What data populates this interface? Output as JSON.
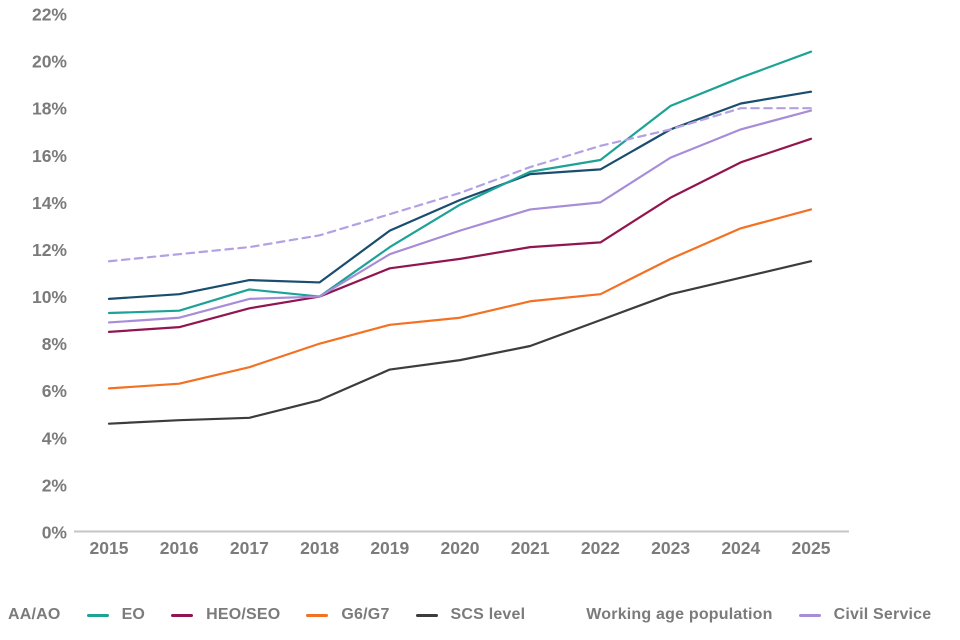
{
  "chart_data": {
    "type": "line",
    "title": "",
    "xlabel": "",
    "ylabel": "",
    "x": [
      "2015",
      "2016",
      "2017",
      "2018",
      "2019",
      "2020",
      "2021",
      "2022",
      "2023",
      "2024",
      "2025"
    ],
    "ylim": [
      0,
      22
    ],
    "ytick_labels": [
      "0%",
      "2%",
      "4%",
      "6%",
      "8%",
      "10%",
      "12%",
      "14%",
      "16%",
      "18%",
      "20%",
      "22%"
    ],
    "grid": false,
    "legend_position": "bottom",
    "series": [
      {
        "name": "AA/AO",
        "color": "#1A4D6E",
        "style": "solid",
        "values": [
          9.9,
          10.1,
          10.7,
          10.6,
          12.8,
          14.1,
          15.2,
          15.4,
          17.1,
          18.2,
          18.7
        ]
      },
      {
        "name": "EO",
        "color": "#1DA296",
        "style": "solid",
        "values": [
          9.3,
          9.4,
          10.3,
          10.0,
          12.1,
          13.9,
          15.3,
          15.8,
          18.1,
          19.3,
          20.4
        ]
      },
      {
        "name": "HEO/SEO",
        "color": "#91164F",
        "style": "solid",
        "values": [
          8.5,
          8.7,
          9.5,
          10.0,
          11.2,
          11.6,
          12.1,
          12.3,
          14.2,
          15.7,
          16.7
        ]
      },
      {
        "name": "G6/G7",
        "color": "#F37123",
        "style": "solid",
        "values": [
          6.1,
          6.3,
          7.0,
          8.0,
          8.8,
          9.1,
          9.8,
          10.1,
          11.6,
          12.9,
          13.7
        ]
      },
      {
        "name": "SCS level",
        "color": "#3C3C3C",
        "style": "solid",
        "values": [
          4.6,
          4.75,
          4.85,
          5.6,
          6.9,
          7.3,
          7.9,
          9.0,
          10.1,
          10.8,
          11.5
        ]
      },
      {
        "name": "Working age population",
        "color": "#B3A1E3",
        "style": "dashed",
        "values": [
          11.5,
          11.8,
          12.1,
          12.6,
          13.5,
          14.4,
          15.5,
          16.4,
          17.1,
          18.0,
          18.0
        ]
      },
      {
        "name": "Civil Service",
        "color": "#A78DD8",
        "style": "solid",
        "values": [
          8.9,
          9.1,
          9.9,
          10.0,
          11.8,
          12.8,
          13.7,
          14.0,
          15.9,
          17.1,
          17.9
        ]
      }
    ]
  },
  "layout_colors": {
    "axis_text": "#7B7B7B",
    "axis_line": "#C6C6C6",
    "background": "#FFFFFF"
  }
}
